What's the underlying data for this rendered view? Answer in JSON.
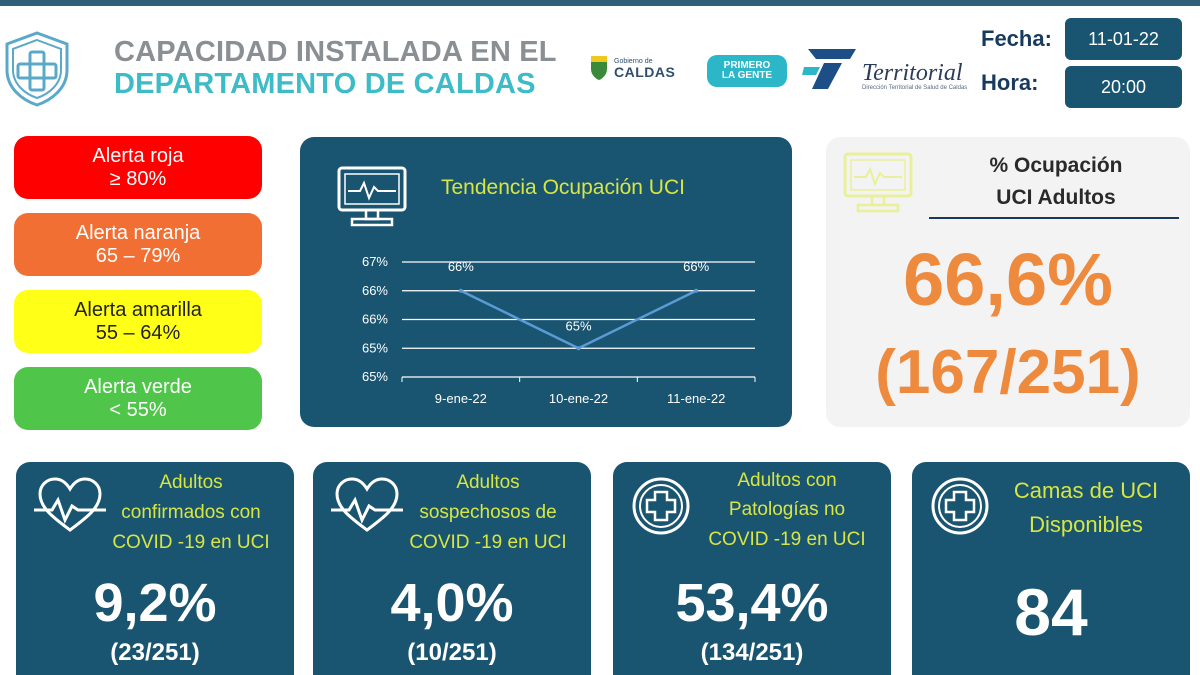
{
  "header": {
    "title_line1": "CAPACIDAD INSTALADA EN EL",
    "title_line2": "DEPARTAMENTO DE CALDAS",
    "fecha_label": "Fecha:",
    "fecha_value": "11-01-22",
    "hora_label": "Hora:",
    "hora_value": "20:00",
    "logos": {
      "caldas_small": "Gobierno de",
      "caldas_big": "CALDAS",
      "primero_line1": "PRIMERO",
      "primero_line2": "LA GENTE",
      "territorial": "Territorial",
      "territorial_small": "Dirección Territorial de Salud de Caldas"
    }
  },
  "alerts": [
    {
      "label": "Alerta roja",
      "range": "≥ 80%",
      "color": "#ff0000"
    },
    {
      "label": "Alerta naranja",
      "range": "65 – 79%",
      "color": "#f26f33"
    },
    {
      "label": "Alerta amarilla",
      "range": "55 – 64%",
      "color": "#ffff18"
    },
    {
      "label": "Alerta verde",
      "range": "< 55%",
      "color": "#4fc64a"
    }
  ],
  "chart_panel": {
    "title": "Tendencia Ocupación UCI",
    "icon": "monitor-heartbeat-icon"
  },
  "chart_data": {
    "type": "line",
    "title": "Tendencia Ocupación UCI",
    "categories": [
      "9-ene-22",
      "10-ene-22",
      "11-ene-22"
    ],
    "series": [
      {
        "values": [
          66,
          65,
          66
        ],
        "labels": [
          "66%",
          "65%",
          "66%"
        ],
        "color": "#5a9bd5"
      }
    ],
    "ytick_labels": [
      "65%",
      "65%",
      "66%",
      "66%",
      "67%"
    ],
    "ylim": [
      64.5,
      66.5
    ],
    "grid": true,
    "legend": "none"
  },
  "occupancy": {
    "title_line1": "% Ocupación",
    "title_line2": "UCI Adultos",
    "percent": "66,6%",
    "fraction": "(167/251)",
    "color": "#ee8a3e"
  },
  "cards": [
    {
      "icon": "heart-pulse-icon",
      "title_lines": [
        "Adultos",
        "confirmados con",
        "COVID -19 en UCI"
      ],
      "percent": "9,2%",
      "fraction": "(23/251)"
    },
    {
      "icon": "heart-pulse-icon",
      "title_lines": [
        "Adultos",
        "sospechosos de",
        "COVID -19 en UCI"
      ],
      "percent": "4,0%",
      "fraction": "(10/251)"
    },
    {
      "icon": "medical-cross-icon",
      "title_lines": [
        "Adultos con",
        "Patologías no",
        "COVID -19 en UCI"
      ],
      "percent": "53,4%",
      "fraction": "(134/251)"
    },
    {
      "icon": "medical-cross-icon",
      "title_lines": [
        "Camas de UCI",
        "Disponibles"
      ],
      "value": "84"
    }
  ]
}
